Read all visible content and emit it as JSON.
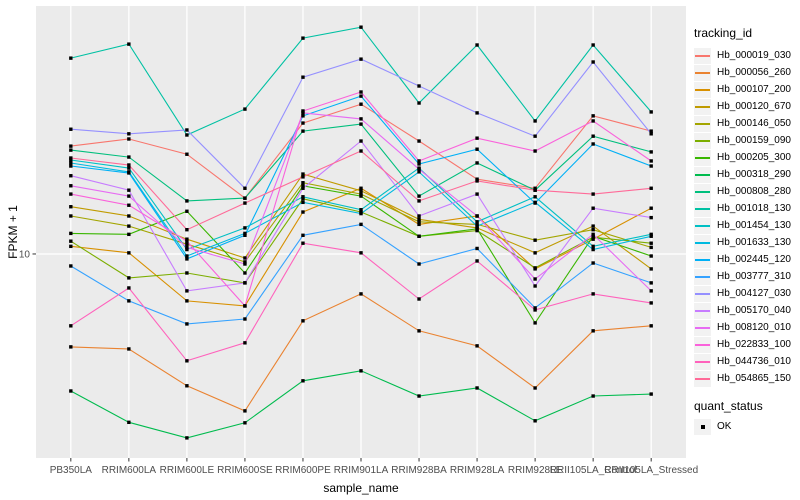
{
  "chart_data": {
    "type": "line",
    "title": "",
    "xlabel": "sample_name",
    "ylabel": "FPKM + 1",
    "yscale": "log10",
    "ylim": [
      1.64,
      90
    ],
    "y_ticks": [
      10
    ],
    "grid": "major",
    "panel_bg": "#EBEBEB",
    "grid_color": "#FFFFFF",
    "tick_text_color": "#4D4D4D",
    "point_color": "#000000",
    "point_shape": "square",
    "legend": {
      "position": "right",
      "title": "tracking_id",
      "quant_title": "quant_status",
      "quant_label": "OK"
    },
    "categories": [
      "PB350LA",
      "RRIM600LA",
      "RRIM600LE",
      "RRIM600SE",
      "RRIM600PE",
      "RRIM901LA",
      "RRIM928BA",
      "RRIM928LA",
      "RRIM928LE",
      "RRII105LA_Control",
      "RRII105LA_Stressed"
    ],
    "series": [
      {
        "name": "Hb_000019_030",
        "color": "#F8766D",
        "values": [
          26.0,
          27.7,
          24.2,
          16.4,
          31.9,
          37.7,
          27.2,
          19.4,
          17.9,
          34.0,
          29.7
        ]
      },
      {
        "name": "Hb_000056_260",
        "color": "#EA8331",
        "values": [
          4.39,
          4.31,
          3.11,
          2.49,
          5.53,
          7.02,
          5.06,
          4.43,
          3.05,
          5.06,
          5.29
        ]
      },
      {
        "name": "Hb_000107_200",
        "color": "#D89000",
        "values": [
          10.7,
          10.1,
          6.6,
          6.31,
          14.5,
          17.9,
          13.0,
          14.0,
          8.76,
          11.4,
          15.0
        ]
      },
      {
        "name": "Hb_000120_670",
        "color": "#C09B00",
        "values": [
          15.2,
          14.0,
          11.4,
          9.65,
          20.3,
          17.5,
          13.6,
          12.6,
          10.1,
          12.8,
          8.76
        ]
      },
      {
        "name": "Hb_000146_050",
        "color": "#A3A500",
        "values": [
          14.0,
          12.8,
          10.9,
          9.32,
          18.8,
          17.0,
          13.3,
          13.0,
          11.3,
          12.4,
          10.6
        ]
      },
      {
        "name": "Hb_000159_090",
        "color": "#7CAE00",
        "values": [
          11.2,
          8.09,
          8.45,
          7.74,
          16.3,
          14.5,
          11.7,
          12.3,
          8.84,
          11.6,
          11.0
        ]
      },
      {
        "name": "Hb_000205_300",
        "color": "#39B600",
        "values": [
          12.0,
          11.9,
          14.6,
          8.45,
          18.3,
          16.7,
          11.7,
          12.5,
          5.43,
          11.7,
          9.82
        ]
      },
      {
        "name": "Hb_000318_290",
        "color": "#00BB4E",
        "values": [
          2.97,
          2.25,
          1.96,
          2.24,
          3.25,
          3.55,
          2.84,
          3.05,
          2.28,
          2.84,
          2.89
        ]
      },
      {
        "name": "Hb_000808_280",
        "color": "#00BF7D",
        "values": [
          25.1,
          23.6,
          16.0,
          16.4,
          29.7,
          31.6,
          16.7,
          22.4,
          17.6,
          28.4,
          24.7
        ]
      },
      {
        "name": "Hb_001018_130",
        "color": "#00C1A3",
        "values": [
          56.7,
          64.2,
          28.7,
          36.1,
          67.7,
          74.6,
          38.1,
          63.7,
          32.5,
          63.7,
          35.2
        ]
      },
      {
        "name": "Hb_001454_130",
        "color": "#00BFC4",
        "values": [
          23.0,
          21.4,
          10.4,
          12.6,
          16.6,
          14.8,
          21.4,
          13.3,
          16.6,
          10.7,
          11.9
        ]
      },
      {
        "name": "Hb_001633_130",
        "color": "#00BAE0",
        "values": [
          22.4,
          20.7,
          9.82,
          12.0,
          15.8,
          14.3,
          20.7,
          12.8,
          15.8,
          10.4,
          11.7
        ]
      },
      {
        "name": "Hb_002445_120",
        "color": "#00B0F6",
        "values": [
          21.8,
          20.5,
          9.57,
          11.8,
          34.0,
          40.5,
          22.2,
          25.3,
          15.7,
          26.5,
          21.8
        ]
      },
      {
        "name": "Hb_003777_310",
        "color": "#35A2FF",
        "values": [
          8.99,
          6.6,
          5.38,
          5.62,
          11.8,
          13.0,
          9.15,
          10.5,
          6.2,
          9.23,
          7.74
        ]
      },
      {
        "name": "Hb_004127_030",
        "color": "#9590FF",
        "values": [
          30.2,
          29.0,
          30.0,
          17.9,
          47.9,
          56.2,
          44.3,
          34.9,
          28.4,
          54.8,
          29.0
        ]
      },
      {
        "name": "Hb_005170_040",
        "color": "#C77CFF",
        "values": [
          20.0,
          17.6,
          7.21,
          7.74,
          17.9,
          27.2,
          14.0,
          17.0,
          7.53,
          15.0,
          13.8
        ]
      },
      {
        "name": "Hb_008120_010",
        "color": "#E76BF3",
        "values": [
          18.3,
          16.7,
          10.6,
          9.15,
          34.9,
          33.1,
          21.2,
          14.0,
          8.01,
          11.9,
          7.21
        ]
      },
      {
        "name": "Hb_022833_100",
        "color": "#FA62DB",
        "values": [
          17.0,
          15.4,
          11.2,
          6.31,
          35.5,
          42.0,
          22.8,
          27.9,
          24.9,
          32.5,
          22.8
        ]
      },
      {
        "name": "Hb_044736_010",
        "color": "#FF62BC",
        "values": [
          5.29,
          7.4,
          3.88,
          4.55,
          11.0,
          10.1,
          6.71,
          9.4,
          6.09,
          7.02,
          6.48
        ]
      },
      {
        "name": "Hb_054865_150",
        "color": "#FF6A98",
        "values": [
          23.4,
          22.0,
          12.4,
          15.7,
          19.8,
          24.9,
          16.0,
          19.1,
          17.6,
          17.0,
          17.9
        ]
      }
    ]
  }
}
